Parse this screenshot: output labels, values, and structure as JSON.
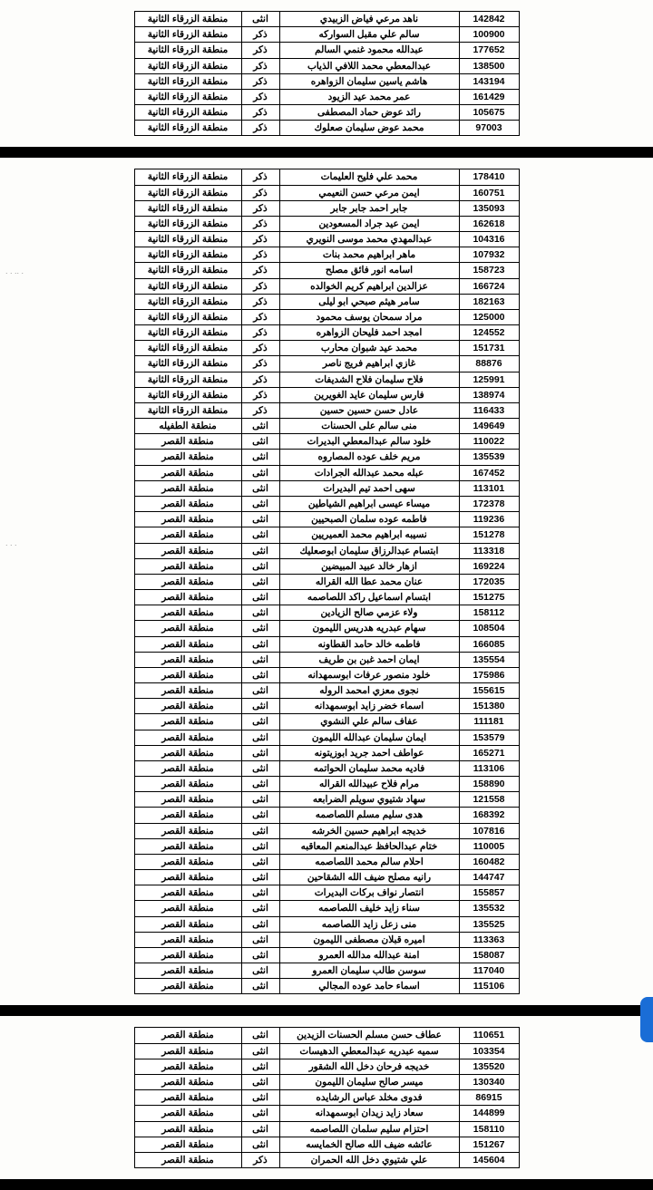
{
  "colors": {
    "page_bg": "#fdfdfb",
    "separator": "#000000",
    "border": "#000000",
    "text": "#000000",
    "tab": "#1a6dd6"
  },
  "typography": {
    "cell_fontsize": 10.5,
    "cell_weight": "bold"
  },
  "columns": {
    "id_width": 66,
    "name_width": 198,
    "gender_width": 42,
    "region_width": 118
  },
  "region_zarqa": "منطقة الزرقاء الثانية",
  "region_tafila": "منطقة الطفيله",
  "region_qasr": "منطقة القصر",
  "male": "ذكر",
  "female": "انثى",
  "tables": [
    {
      "rows": [
        {
          "id": "142842",
          "name": "ناهد مرعي فياض الزبيدي",
          "gender": "female",
          "region": "zarqa"
        },
        {
          "id": "100900",
          "name": "سالم علي مقبل السواركه",
          "gender": "male",
          "region": "zarqa"
        },
        {
          "id": "177652",
          "name": "عبدالله محمود غنمي السالم",
          "gender": "male",
          "region": "zarqa"
        },
        {
          "id": "138500",
          "name": "عبدالمعطي محمد اللافي الذياب",
          "gender": "male",
          "region": "zarqa"
        },
        {
          "id": "143194",
          "name": "هاشم ياسين سليمان الزواهره",
          "gender": "male",
          "region": "zarqa"
        },
        {
          "id": "161429",
          "name": "عمر محمد عيد الزيود",
          "gender": "male",
          "region": "zarqa"
        },
        {
          "id": "105675",
          "name": "رائد عوض حماد المصطفى",
          "gender": "male",
          "region": "zarqa"
        },
        {
          "id": "97003",
          "name": "محمد عوض سليمان صعلوك",
          "gender": "male",
          "region": "zarqa"
        }
      ]
    },
    {
      "rows": [
        {
          "id": "178410",
          "name": "محمد علي فليح العليمات",
          "gender": "male",
          "region": "zarqa"
        },
        {
          "id": "160751",
          "name": "ايمن مرعي حسن النعيمي",
          "gender": "male",
          "region": "zarqa"
        },
        {
          "id": "135093",
          "name": "جابر احمد جابر جابر",
          "gender": "male",
          "region": "zarqa"
        },
        {
          "id": "162618",
          "name": "ايمن عيد جراد المسعودين",
          "gender": "male",
          "region": "zarqa"
        },
        {
          "id": "104316",
          "name": "عبدالمهدي محمد موسى النويري",
          "gender": "male",
          "region": "zarqa"
        },
        {
          "id": "107932",
          "name": "ماهر ابراهيم محمد بنات",
          "gender": "male",
          "region": "zarqa"
        },
        {
          "id": "158723",
          "name": "اسامه انور فائق مصلح",
          "gender": "male",
          "region": "zarqa"
        },
        {
          "id": "166724",
          "name": "عزالدين ابراهيم كريم الخوالده",
          "gender": "male",
          "region": "zarqa"
        },
        {
          "id": "182163",
          "name": "سامر هيثم صبحي ابو ليلى",
          "gender": "male",
          "region": "zarqa"
        },
        {
          "id": "125000",
          "name": "مراد سمحان يوسف محمود",
          "gender": "male",
          "region": "zarqa"
        },
        {
          "id": "124552",
          "name": "امجد احمد فليحان الزواهره",
          "gender": "male",
          "region": "zarqa"
        },
        {
          "id": "151731",
          "name": "محمد عيد شبوان محارب",
          "gender": "male",
          "region": "zarqa"
        },
        {
          "id": "88876",
          "name": "غازي ابراهيم فريج ناصر",
          "gender": "male",
          "region": "zarqa"
        },
        {
          "id": "125991",
          "name": "فلاح سليمان فلاح الشديفات",
          "gender": "male",
          "region": "zarqa"
        },
        {
          "id": "138974",
          "name": "فارس سليمان عايد الغويرين",
          "gender": "male",
          "region": "zarqa"
        },
        {
          "id": "116433",
          "name": "عادل حسن حسين حسين",
          "gender": "male",
          "region": "zarqa"
        },
        {
          "id": "149649",
          "name": "منى سالم على الحسنات",
          "gender": "female",
          "region": "tafila"
        },
        {
          "id": "110022",
          "name": "خلود سالم عبدالمعطي البديرات",
          "gender": "female",
          "region": "qasr"
        },
        {
          "id": "135539",
          "name": "مريم خلف عوده المصاروه",
          "gender": "female",
          "region": "qasr"
        },
        {
          "id": "167452",
          "name": "عبله محمد عبدالله الجرادات",
          "gender": "female",
          "region": "qasr"
        },
        {
          "id": "113101",
          "name": "سهى احمد تيم البديرات",
          "gender": "female",
          "region": "qasr"
        },
        {
          "id": "172378",
          "name": "ميساء عيسى ابراهيم الشياطين",
          "gender": "female",
          "region": "qasr"
        },
        {
          "id": "119236",
          "name": "فاطمه عوده سلمان الصبحيين",
          "gender": "female",
          "region": "qasr"
        },
        {
          "id": "151278",
          "name": "نسيبه ابراهيم محمد العميريين",
          "gender": "female",
          "region": "qasr"
        },
        {
          "id": "113318",
          "name": "ابتسام عبدالرزاق سليمان ابوصعليك",
          "gender": "female",
          "region": "qasr"
        },
        {
          "id": "169224",
          "name": "ازهار خالد عبيد المبيضين",
          "gender": "female",
          "region": "qasr"
        },
        {
          "id": "172035",
          "name": "عنان محمد عطا الله القراله",
          "gender": "female",
          "region": "qasr"
        },
        {
          "id": "151275",
          "name": "ابتسام اسماعيل راكد اللصاصمه",
          "gender": "female",
          "region": "qasr"
        },
        {
          "id": "158112",
          "name": "ولاء عزمي صالح الزيادين",
          "gender": "female",
          "region": "qasr"
        },
        {
          "id": "108504",
          "name": "سهام عبدريه هدريس الليمون",
          "gender": "female",
          "region": "qasr"
        },
        {
          "id": "166085",
          "name": "فاطمه خالد حامد القطاونه",
          "gender": "female",
          "region": "qasr"
        },
        {
          "id": "135554",
          "name": "ايمان احمد غبن بن طريف",
          "gender": "female",
          "region": "qasr"
        },
        {
          "id": "175986",
          "name": "خلود منصور عرفات ابوسمهدانه",
          "gender": "female",
          "region": "qasr"
        },
        {
          "id": "155615",
          "name": "نجوى معزي امحمد الروله",
          "gender": "female",
          "region": "qasr"
        },
        {
          "id": "151380",
          "name": "اسماء خضر زايد ابوسمهدانه",
          "gender": "female",
          "region": "qasr"
        },
        {
          "id": "111181",
          "name": "عفاف سالم علي النشوي",
          "gender": "female",
          "region": "qasr"
        },
        {
          "id": "153579",
          "name": "ايمان سليمان عبدالله الليمون",
          "gender": "female",
          "region": "qasr"
        },
        {
          "id": "165271",
          "name": "عواطف احمد جريد ابوزيتونه",
          "gender": "female",
          "region": "qasr"
        },
        {
          "id": "113106",
          "name": "فاديه محمد سليمان الحواتمه",
          "gender": "female",
          "region": "qasr"
        },
        {
          "id": "158890",
          "name": "مرام فلاح عبيدالله القراله",
          "gender": "female",
          "region": "qasr"
        },
        {
          "id": "121558",
          "name": "سهاد شتيوي سويلم الضرابعه",
          "gender": "female",
          "region": "qasr"
        },
        {
          "id": "168392",
          "name": "هدى سليم مسلم اللصاصمه",
          "gender": "female",
          "region": "qasr"
        },
        {
          "id": "107816",
          "name": "خديجه ابراهيم حسين الخرشه",
          "gender": "female",
          "region": "qasr"
        },
        {
          "id": "110005",
          "name": "ختام عبدالحافظ عبدالمنعم المعاقبه",
          "gender": "female",
          "region": "qasr"
        },
        {
          "id": "160482",
          "name": "احلام سالم محمد اللصاصمه",
          "gender": "female",
          "region": "qasr"
        },
        {
          "id": "144747",
          "name": "رانيه مصلح ضيف الله الشقاحين",
          "gender": "female",
          "region": "qasr"
        },
        {
          "id": "155857",
          "name": "انتصار نواف بركات البديرات",
          "gender": "female",
          "region": "qasr"
        },
        {
          "id": "135532",
          "name": "سناء زايد خليف اللصاصمه",
          "gender": "female",
          "region": "qasr"
        },
        {
          "id": "135525",
          "name": "منى زعل زايد اللصاصمه",
          "gender": "female",
          "region": "qasr"
        },
        {
          "id": "113363",
          "name": "اميره قبلان مصطفى الليمون",
          "gender": "female",
          "region": "qasr"
        },
        {
          "id": "158087",
          "name": "امنة عبدالله مدالله العمرو",
          "gender": "female",
          "region": "qasr"
        },
        {
          "id": "117040",
          "name": "سوسن طالب سليمان العمرو",
          "gender": "female",
          "region": "qasr"
        },
        {
          "id": "115106",
          "name": "اسماء حامد عوده المجالي",
          "gender": "female",
          "region": "qasr"
        }
      ]
    },
    {
      "rows": [
        {
          "id": "110651",
          "name": "عطاف حسن مسلم الحسنات الزيدين",
          "gender": "female",
          "region": "qasr"
        },
        {
          "id": "103354",
          "name": "سميه عبدريه عبدالمعطي الدهيسات",
          "gender": "female",
          "region": "qasr"
        },
        {
          "id": "135520",
          "name": "خديجه فرحان دخل الله الشقور",
          "gender": "female",
          "region": "qasr"
        },
        {
          "id": "130340",
          "name": "ميسر صالح سليمان الليمون",
          "gender": "female",
          "region": "qasr"
        },
        {
          "id": "86915",
          "name": "فدوى مخلد عباس الرشايده",
          "gender": "female",
          "region": "qasr"
        },
        {
          "id": "144899",
          "name": "سعاد زايد زيدان ابوسمهدانه",
          "gender": "female",
          "region": "qasr"
        },
        {
          "id": "158110",
          "name": "احتزام سليم سلمان اللصاصمه",
          "gender": "female",
          "region": "qasr"
        },
        {
          "id": "151267",
          "name": "عائشه ضيف الله صالح الخمايسه",
          "gender": "female",
          "region": "qasr"
        },
        {
          "id": "145604",
          "name": "علي شتيوي دخل الله الحمران",
          "gender": "male",
          "region": "qasr"
        }
      ]
    }
  ]
}
